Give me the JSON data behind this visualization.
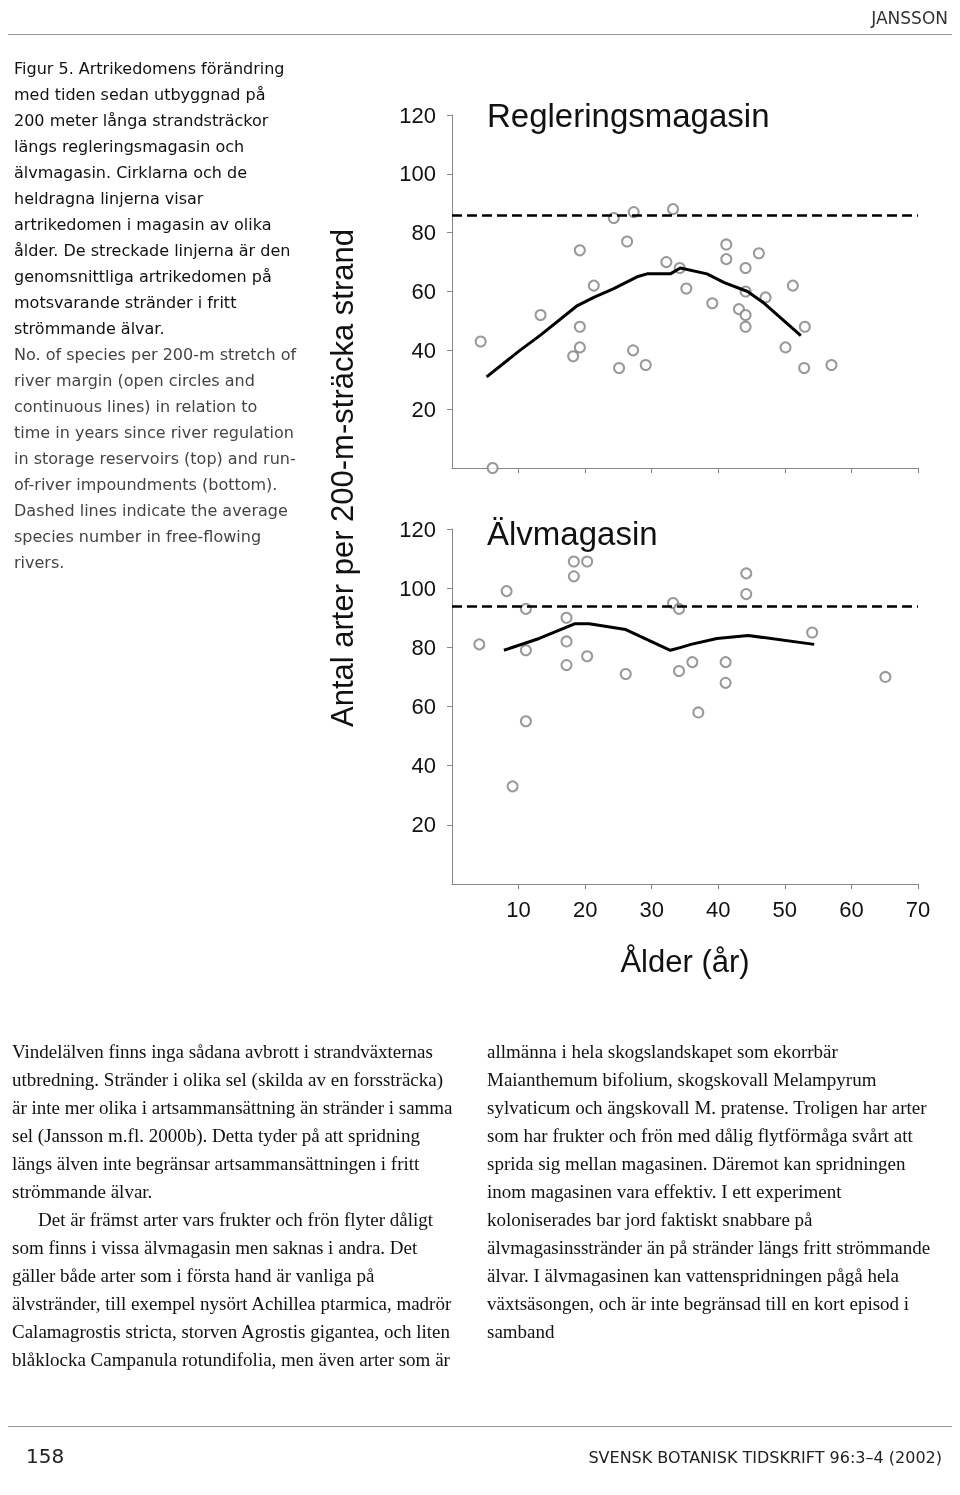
{
  "chart_data": [
    {
      "type": "scatter",
      "title": "Regleringsmagasin",
      "ylabel": "Antal arter per 200-m-sträcka strand",
      "annotations": [
        "JANSSON",
        "Figur 5. Artrikedomens förändring med tiden sedan utbyggnad på 200 meter långa strandsträckor längs regleringsmagasin och älvmagasin. Cirklarna och de heldragna linjerna visar artrikedomen i magasin av olika ålder. De streckade linjerna är den genomsnittliga artrikedomen på motsvarande stränder i fritt strömmande älvar.",
        "No. of species per 200-m stretch of river margin (open circles and continuous lines) in relation to time in years since river regulation in storage reservoirs (top) and run-of-river impoundments (bottom). Dashed lines indicate the average species number in free-flowing rivers.",
        "Vindelälven finns inga sådana avbrott i strandväxternas utbredning. Stränder i olika sel (skilda av en forssträcka) är inte mer olika i artsammansättning än stränder i samma sel (Jansson m.fl. 2000b). Detta tyder på att spridning längs älven inte begränsar artsammansättningen i fritt strömmande älvar.",
        "Det är främst arter vars frukter och frön flyter dåligt som finns i vissa älvmagasin men saknas i andra. Det gäller både arter som i första hand är vanliga på älvstränder, till exempel nysört Achillea ptarmica, madrör Calamagrostis stricta, storven Agrostis gigantea, och liten blåklocka Campanula rotundifolia, men även arter som är allmänna i hela skogslandskapet som ekorrbär Maianthemum bifolium, skogskovall Melampyrum sylvaticum och ängskovall M. pratense. Troligen har arter som har frukter och frön med dålig flytförmåga svårt att sprida sig mellan magasinen. Däremot kan spridningen inom magasinen vara effektiv. I ett experiment koloniserades bar jord faktiskt snabbare på älvmagasinsstränder än på stränder längs fritt strömmande älvar. I älvmagasinen kan vattenspridningen pågå hela växtsäsongen, och är inte begränsad till en kort episod i samband",
        "158",
        "SVENSK BOTANISK TIDSKRIFT 96:3–4 (2002)"
      ],
      "xlim": [
        0,
        70
      ],
      "xticks": [
        10,
        20,
        30,
        40,
        50,
        60,
        70
      ],
      "ylim": [
        0,
        120
      ],
      "yticks": [
        20,
        40,
        60,
        80,
        100,
        120
      ],
      "tick_labels": "y",
      "grid": false,
      "series": [
        {
          "color": "#808080",
          "marker": "circle",
          "x": [
            4.3,
            6.1,
            13.3,
            19.2,
            21.3,
            19.2,
            19.2,
            18.2,
            24.3,
            27.3,
            26.3,
            27.2,
            25.1,
            29.1,
            32.2,
            33.2,
            34.2,
            35.2,
            39.1,
            41.2,
            41.2,
            43.1,
            44.1,
            44.1,
            44.1,
            44.1,
            46.1,
            47.1,
            51.2,
            50.1,
            53.0,
            52.9,
            57.0
          ],
          "values": [
            43,
            0,
            52,
            74,
            62,
            48,
            41,
            38,
            85,
            87,
            77,
            40,
            34,
            35,
            70,
            88,
            68,
            61,
            56,
            76,
            71,
            54,
            68,
            60,
            52,
            48,
            73,
            58,
            62,
            41,
            48,
            34,
            35
          ]
        },
        {
          "type": "line",
          "color": "#000000",
          "marker": "none",
          "line_style": "solid",
          "x": [
            5.2,
            10.2,
            13.2,
            18.7,
            21.3,
            24.3,
            27.8,
            29.3,
            32.8,
            34.3,
            38.3,
            40.9,
            44.4,
            46.9,
            52.4
          ],
          "values": [
            31,
            40,
            45,
            55,
            58,
            61,
            65,
            66,
            66,
            68,
            66,
            63,
            60,
            56,
            45
          ]
        }
      ],
      "ref_lines": [
        {
          "axis": "y",
          "value": 86,
          "color": "#000000",
          "line_style": "dashed"
        }
      ]
    },
    {
      "type": "scatter",
      "title": "Älvmagasin",
      "xlabel": "Ålder (år)",
      "xlim": [
        0,
        70
      ],
      "xticks": [
        10,
        20,
        30,
        40,
        50,
        60,
        70
      ],
      "ylim": [
        0,
        120
      ],
      "yticks": [
        20,
        40,
        60,
        80,
        100,
        120
      ],
      "grid": false,
      "series": [
        {
          "color": "#808080",
          "marker": "circle",
          "x": [
            4.1,
            8.2,
            9.1,
            11.1,
            11.1,
            11.1,
            17.2,
            17.2,
            17.2,
            18.3,
            18.3,
            20.3,
            20.3,
            26.1,
            33.2,
            34.1,
            34.1,
            36.1,
            37.0,
            41.1,
            41.1,
            44.2,
            44.2,
            54.1,
            65.1
          ],
          "values": [
            81,
            99,
            33,
            93,
            79,
            55,
            90,
            82,
            74,
            109,
            104,
            109,
            77,
            71,
            95,
            93,
            72,
            75,
            58,
            75,
            68,
            105,
            98,
            85,
            70
          ]
        },
        {
          "type": "line",
          "color": "#000000",
          "marker": "none",
          "line_style": "solid",
          "x": [
            7.8,
            13.1,
            18.5,
            20.6,
            26.1,
            32.8,
            34.4,
            35.9,
            39.8,
            44.5,
            54.4
          ],
          "values": [
            79,
            83,
            88,
            88,
            86,
            79,
            80,
            81,
            83,
            84,
            81
          ]
        }
      ],
      "ref_lines": [
        {
          "axis": "y",
          "value": 94,
          "color": "#000000",
          "line_style": "dashed"
        }
      ]
    }
  ]
}
